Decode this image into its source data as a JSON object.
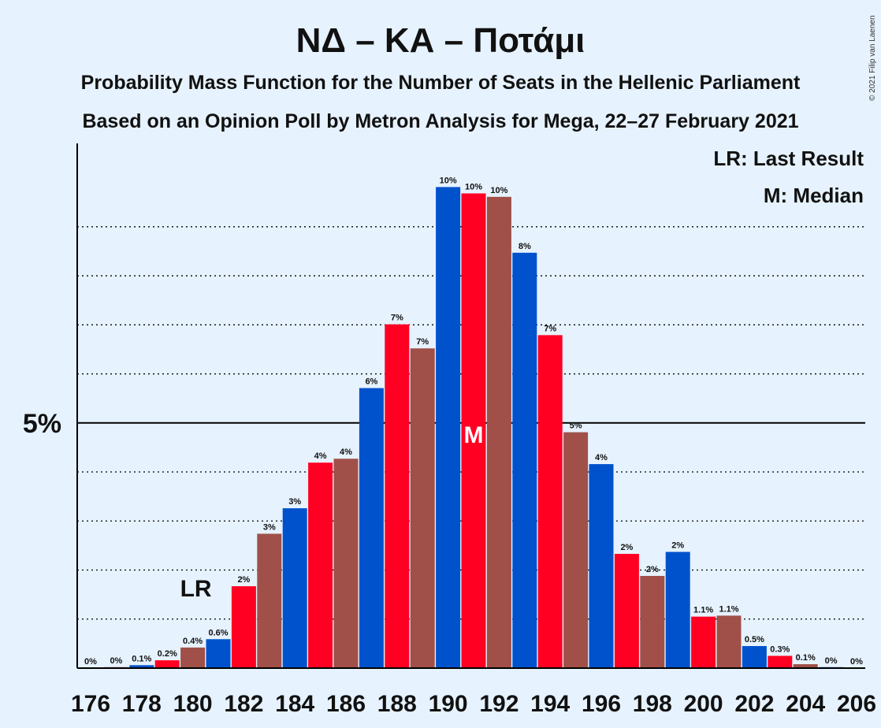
{
  "chart_data": {
    "type": "bar",
    "title": "ΝΔ – ΚΑ – Ποτάμι",
    "subtitle": "Probability Mass Function for the Number of Seats in the Hellenic Parliament",
    "subtitle2": "Based on an Opinion Poll by Metron Analysis for Mega, 22–27 February 2021",
    "copyright": "© 2021 Filip van Laenen",
    "legend": [
      "LR: Last Result",
      "M: Median"
    ],
    "ytick_label": "5%",
    "ytick_value": 5,
    "ylim": [
      0,
      10.7
    ],
    "grid": true,
    "x": [
      176,
      177,
      178,
      179,
      180,
      181,
      182,
      183,
      184,
      185,
      186,
      187,
      188,
      189,
      190,
      191,
      192,
      193,
      194,
      195,
      196,
      197,
      198,
      199,
      200,
      201,
      202,
      203,
      204,
      205,
      206
    ],
    "values": [
      0.0,
      0.02,
      0.06,
      0.16,
      0.42,
      0.59,
      1.67,
      2.74,
      3.26,
      4.19,
      4.27,
      5.71,
      7.01,
      6.52,
      9.81,
      9.68,
      9.61,
      8.47,
      6.79,
      4.81,
      4.16,
      2.33,
      1.88,
      2.37,
      1.05,
      1.07,
      0.45,
      0.25,
      0.08,
      0.02,
      0.0
    ],
    "labels": [
      "0%",
      "0%",
      "0.1%",
      "0.2%",
      "0.4%",
      "0.6%",
      "2%",
      "3%",
      "3%",
      "4%",
      "4%",
      "6%",
      "7%",
      "7%",
      "10%",
      "10%",
      "10%",
      "8%",
      "7%",
      "5%",
      "4%",
      "2%",
      "2%",
      "2%",
      "1.1%",
      "1.1%",
      "0.5%",
      "0.3%",
      "0.1%",
      "0%",
      "0%"
    ],
    "xtick_labels": [
      "176",
      "178",
      "180",
      "182",
      "184",
      "186",
      "188",
      "190",
      "192",
      "194",
      "196",
      "198",
      "200",
      "202",
      "204",
      "206"
    ],
    "last_result": 180,
    "last_result_label": "LR",
    "median": 191,
    "median_label": "M",
    "colors": [
      "#ff0023",
      "#a05048",
      "#0052cc"
    ]
  }
}
